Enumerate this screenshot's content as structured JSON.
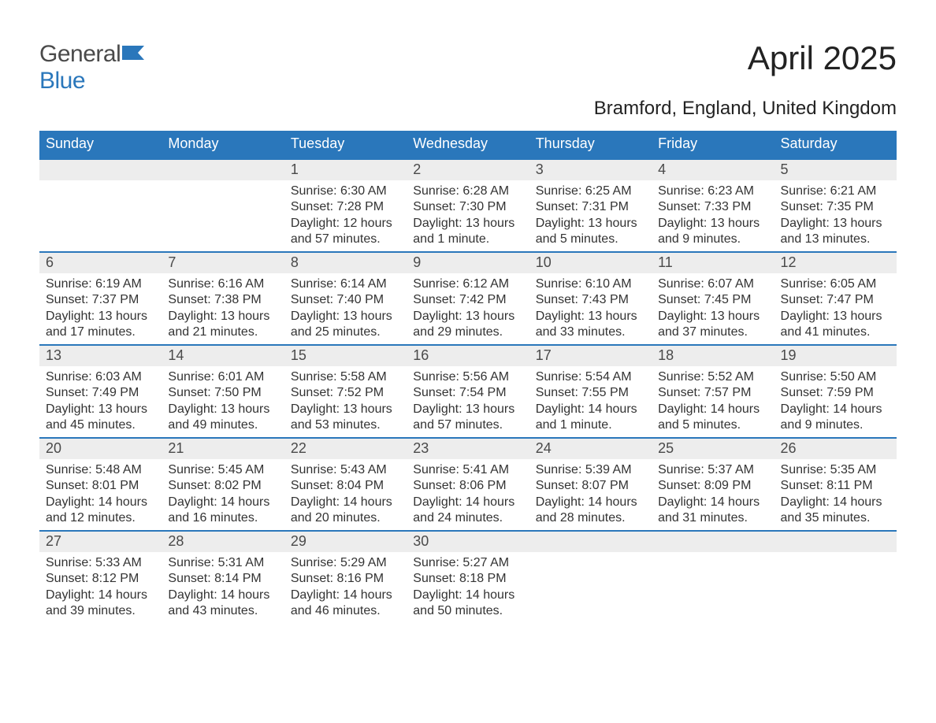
{
  "logo": {
    "part1": "General",
    "part2": "Blue"
  },
  "title": "April 2025",
  "subtitle": "Bramford, England, United Kingdom",
  "colors": {
    "header_bg": "#2a77bb",
    "header_text": "#ffffff",
    "daynum_bg": "#ededed",
    "divider": "#2a77bb",
    "text": "#333333",
    "page_bg": "#ffffff",
    "logo_general": "#4a4a4a",
    "logo_blue": "#2a77bb"
  },
  "weekdays": [
    "Sunday",
    "Monday",
    "Tuesday",
    "Wednesday",
    "Thursday",
    "Friday",
    "Saturday"
  ],
  "weeks": [
    {
      "days": [
        {
          "num": "",
          "sunrise": "",
          "sunset": "",
          "daylight1": "",
          "daylight2": ""
        },
        {
          "num": "",
          "sunrise": "",
          "sunset": "",
          "daylight1": "",
          "daylight2": ""
        },
        {
          "num": "1",
          "sunrise": "Sunrise: 6:30 AM",
          "sunset": "Sunset: 7:28 PM",
          "daylight1": "Daylight: 12 hours",
          "daylight2": "and 57 minutes."
        },
        {
          "num": "2",
          "sunrise": "Sunrise: 6:28 AM",
          "sunset": "Sunset: 7:30 PM",
          "daylight1": "Daylight: 13 hours",
          "daylight2": "and 1 minute."
        },
        {
          "num": "3",
          "sunrise": "Sunrise: 6:25 AM",
          "sunset": "Sunset: 7:31 PM",
          "daylight1": "Daylight: 13 hours",
          "daylight2": "and 5 minutes."
        },
        {
          "num": "4",
          "sunrise": "Sunrise: 6:23 AM",
          "sunset": "Sunset: 7:33 PM",
          "daylight1": "Daylight: 13 hours",
          "daylight2": "and 9 minutes."
        },
        {
          "num": "5",
          "sunrise": "Sunrise: 6:21 AM",
          "sunset": "Sunset: 7:35 PM",
          "daylight1": "Daylight: 13 hours",
          "daylight2": "and 13 minutes."
        }
      ]
    },
    {
      "days": [
        {
          "num": "6",
          "sunrise": "Sunrise: 6:19 AM",
          "sunset": "Sunset: 7:37 PM",
          "daylight1": "Daylight: 13 hours",
          "daylight2": "and 17 minutes."
        },
        {
          "num": "7",
          "sunrise": "Sunrise: 6:16 AM",
          "sunset": "Sunset: 7:38 PM",
          "daylight1": "Daylight: 13 hours",
          "daylight2": "and 21 minutes."
        },
        {
          "num": "8",
          "sunrise": "Sunrise: 6:14 AM",
          "sunset": "Sunset: 7:40 PM",
          "daylight1": "Daylight: 13 hours",
          "daylight2": "and 25 minutes."
        },
        {
          "num": "9",
          "sunrise": "Sunrise: 6:12 AM",
          "sunset": "Sunset: 7:42 PM",
          "daylight1": "Daylight: 13 hours",
          "daylight2": "and 29 minutes."
        },
        {
          "num": "10",
          "sunrise": "Sunrise: 6:10 AM",
          "sunset": "Sunset: 7:43 PM",
          "daylight1": "Daylight: 13 hours",
          "daylight2": "and 33 minutes."
        },
        {
          "num": "11",
          "sunrise": "Sunrise: 6:07 AM",
          "sunset": "Sunset: 7:45 PM",
          "daylight1": "Daylight: 13 hours",
          "daylight2": "and 37 minutes."
        },
        {
          "num": "12",
          "sunrise": "Sunrise: 6:05 AM",
          "sunset": "Sunset: 7:47 PM",
          "daylight1": "Daylight: 13 hours",
          "daylight2": "and 41 minutes."
        }
      ]
    },
    {
      "days": [
        {
          "num": "13",
          "sunrise": "Sunrise: 6:03 AM",
          "sunset": "Sunset: 7:49 PM",
          "daylight1": "Daylight: 13 hours",
          "daylight2": "and 45 minutes."
        },
        {
          "num": "14",
          "sunrise": "Sunrise: 6:01 AM",
          "sunset": "Sunset: 7:50 PM",
          "daylight1": "Daylight: 13 hours",
          "daylight2": "and 49 minutes."
        },
        {
          "num": "15",
          "sunrise": "Sunrise: 5:58 AM",
          "sunset": "Sunset: 7:52 PM",
          "daylight1": "Daylight: 13 hours",
          "daylight2": "and 53 minutes."
        },
        {
          "num": "16",
          "sunrise": "Sunrise: 5:56 AM",
          "sunset": "Sunset: 7:54 PM",
          "daylight1": "Daylight: 13 hours",
          "daylight2": "and 57 minutes."
        },
        {
          "num": "17",
          "sunrise": "Sunrise: 5:54 AM",
          "sunset": "Sunset: 7:55 PM",
          "daylight1": "Daylight: 14 hours",
          "daylight2": "and 1 minute."
        },
        {
          "num": "18",
          "sunrise": "Sunrise: 5:52 AM",
          "sunset": "Sunset: 7:57 PM",
          "daylight1": "Daylight: 14 hours",
          "daylight2": "and 5 minutes."
        },
        {
          "num": "19",
          "sunrise": "Sunrise: 5:50 AM",
          "sunset": "Sunset: 7:59 PM",
          "daylight1": "Daylight: 14 hours",
          "daylight2": "and 9 minutes."
        }
      ]
    },
    {
      "days": [
        {
          "num": "20",
          "sunrise": "Sunrise: 5:48 AM",
          "sunset": "Sunset: 8:01 PM",
          "daylight1": "Daylight: 14 hours",
          "daylight2": "and 12 minutes."
        },
        {
          "num": "21",
          "sunrise": "Sunrise: 5:45 AM",
          "sunset": "Sunset: 8:02 PM",
          "daylight1": "Daylight: 14 hours",
          "daylight2": "and 16 minutes."
        },
        {
          "num": "22",
          "sunrise": "Sunrise: 5:43 AM",
          "sunset": "Sunset: 8:04 PM",
          "daylight1": "Daylight: 14 hours",
          "daylight2": "and 20 minutes."
        },
        {
          "num": "23",
          "sunrise": "Sunrise: 5:41 AM",
          "sunset": "Sunset: 8:06 PM",
          "daylight1": "Daylight: 14 hours",
          "daylight2": "and 24 minutes."
        },
        {
          "num": "24",
          "sunrise": "Sunrise: 5:39 AM",
          "sunset": "Sunset: 8:07 PM",
          "daylight1": "Daylight: 14 hours",
          "daylight2": "and 28 minutes."
        },
        {
          "num": "25",
          "sunrise": "Sunrise: 5:37 AM",
          "sunset": "Sunset: 8:09 PM",
          "daylight1": "Daylight: 14 hours",
          "daylight2": "and 31 minutes."
        },
        {
          "num": "26",
          "sunrise": "Sunrise: 5:35 AM",
          "sunset": "Sunset: 8:11 PM",
          "daylight1": "Daylight: 14 hours",
          "daylight2": "and 35 minutes."
        }
      ]
    },
    {
      "days": [
        {
          "num": "27",
          "sunrise": "Sunrise: 5:33 AM",
          "sunset": "Sunset: 8:12 PM",
          "daylight1": "Daylight: 14 hours",
          "daylight2": "and 39 minutes."
        },
        {
          "num": "28",
          "sunrise": "Sunrise: 5:31 AM",
          "sunset": "Sunset: 8:14 PM",
          "daylight1": "Daylight: 14 hours",
          "daylight2": "and 43 minutes."
        },
        {
          "num": "29",
          "sunrise": "Sunrise: 5:29 AM",
          "sunset": "Sunset: 8:16 PM",
          "daylight1": "Daylight: 14 hours",
          "daylight2": "and 46 minutes."
        },
        {
          "num": "30",
          "sunrise": "Sunrise: 5:27 AM",
          "sunset": "Sunset: 8:18 PM",
          "daylight1": "Daylight: 14 hours",
          "daylight2": "and 50 minutes."
        },
        {
          "num": "",
          "sunrise": "",
          "sunset": "",
          "daylight1": "",
          "daylight2": ""
        },
        {
          "num": "",
          "sunrise": "",
          "sunset": "",
          "daylight1": "",
          "daylight2": ""
        },
        {
          "num": "",
          "sunrise": "",
          "sunset": "",
          "daylight1": "",
          "daylight2": ""
        }
      ]
    }
  ]
}
